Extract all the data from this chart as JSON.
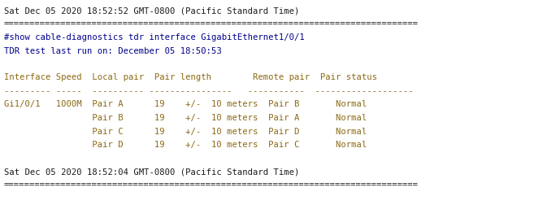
{
  "background_color": "#ffffff",
  "font_family": "monospace",
  "font_size": 7.6,
  "figsize": [
    6.84,
    2.53
  ],
  "dpi": 100,
  "lines": [
    {
      "text": "Sat Dec 05 2020 18:52:52 GMT-0800 (Pacific Standard Time)",
      "color": "#1a1a1a"
    },
    {
      "text": "================================================================================",
      "color": "#1a1a1a"
    },
    {
      "text": "#show cable-diagnostics tdr interface GigabitEthernet1/0/1",
      "color": "#00008b"
    },
    {
      "text": "TDR test last run on: December 05 18:50:53",
      "color": "#00008b"
    },
    {
      "text": "",
      "color": "#000000"
    },
    {
      "text": "Interface Speed  Local pair  Pair length        Remote pair  Pair status",
      "color": "#8b6914"
    },
    {
      "text": "--------- -----  ---------- ----------------   -----------  -------------------",
      "color": "#8b6914"
    },
    {
      "text": "Gi1/0/1   1000M  Pair A      19    +/-  10 meters  Pair B       Normal",
      "color": "#8b6914"
    },
    {
      "text": "                 Pair B      19    +/-  10 meters  Pair A       Normal",
      "color": "#8b6914"
    },
    {
      "text": "                 Pair C      19    +/-  10 meters  Pair D       Normal",
      "color": "#8b6914"
    },
    {
      "text": "                 Pair D      19    +/-  10 meters  Pair C       Normal",
      "color": "#8b6914"
    },
    {
      "text": "",
      "color": "#000000"
    },
    {
      "text": "Sat Dec 05 2020 18:52:04 GMT-0800 (Pacific Standard Time)",
      "color": "#1a1a1a"
    },
    {
      "text": "================================================================================",
      "color": "#1a1a1a"
    }
  ]
}
